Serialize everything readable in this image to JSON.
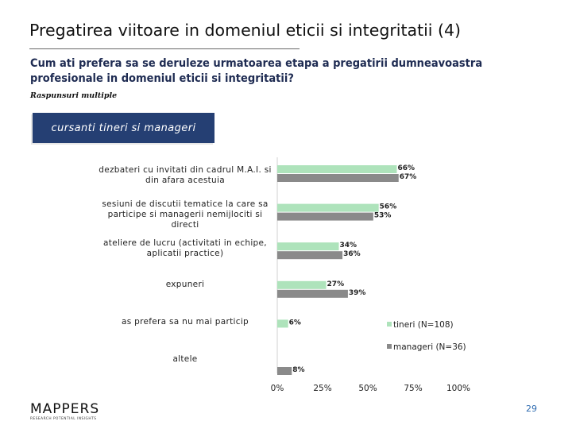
{
  "page": {
    "title": "Pregatirea viitoare in domeniul eticii si integritatii (4)",
    "question": "Cum ati prefera sa se deruleze urmatoarea etapa a pregatirii dumneavoastra profesionale in domeniul eticii si integritatii?",
    "note": "Raspunsuri multiple",
    "segment_label": "cursanti tineri si manageri",
    "brand": {
      "name": "MAPPERS",
      "tagline": "RESEARCH POTENTIAL INSIGHTS"
    },
    "page_number": "29"
  },
  "chart_data": {
    "type": "bar",
    "orientation": "horizontal",
    "categories": [
      "dezbateri cu invitati din cadrul M.A.I. si din afara acestuia",
      "sesiuni de discutii tematice la care sa participe si managerii nemijlociti si directi",
      "ateliere de lucru (activitati in echipe, aplicatii practice)",
      "expuneri",
      "as prefera sa nu mai particip",
      "altele"
    ],
    "series": [
      {
        "name": "tineri (N=108)",
        "color": "#aee3bb",
        "values": [
          66,
          56,
          34,
          27,
          6,
          0
        ],
        "labels": [
          "66%",
          "56%",
          "34%",
          "27%",
          "6%",
          ""
        ]
      },
      {
        "name": "manageri (N=36)",
        "color": "#8a8a8a",
        "values": [
          67,
          53,
          36,
          39,
          0,
          8
        ],
        "labels": [
          "67%",
          "53%",
          "36%",
          "39%",
          "",
          "8%"
        ]
      }
    ],
    "x_ticks": [
      "0%",
      "25%",
      "50%",
      "75%",
      "100%"
    ],
    "xlim": [
      0,
      100
    ],
    "legend_position": "right"
  }
}
